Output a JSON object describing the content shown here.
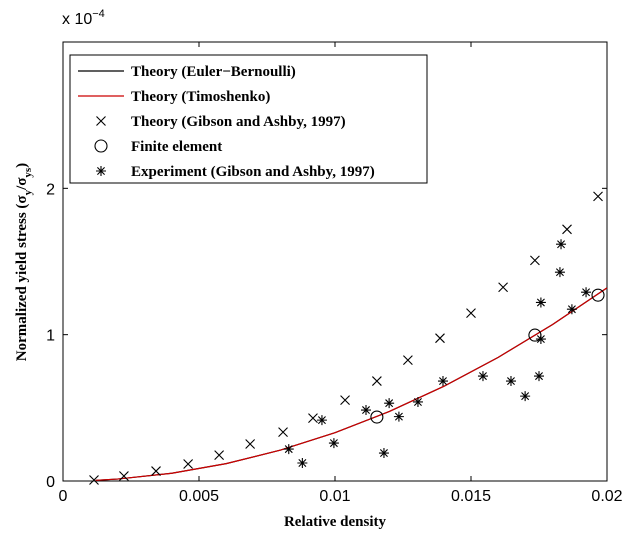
{
  "chart_data": {
    "type": "scatter",
    "y_multiplier": "x 10",
    "y_exponent": "−4",
    "x_label": "Relative density",
    "y_label": [
      "Normalized yield stress (σ",
      "y",
      "/σ",
      "ys",
      ")"
    ],
    "xlim": [
      0,
      0.02
    ],
    "xticks": [
      0,
      0.005,
      0.01,
      0.015,
      0.02
    ],
    "ylim": [
      0,
      3
    ],
    "yticks": [
      0,
      1,
      2
    ],
    "legend": "upper left",
    "series": [
      {
        "name": "Theory (Euler−Bernoulli)",
        "color": "#000000",
        "marker": "line",
        "x": [
          0.0012,
          0.002,
          0.004,
          0.006,
          0.008,
          0.01,
          0.012,
          0.014,
          0.016,
          0.018,
          0.02
        ],
        "values": [
          0.0048,
          0.0132,
          0.0528,
          0.1188,
          0.2112,
          0.33,
          0.4752,
          0.6468,
          0.8448,
          1.0692,
          1.32
        ]
      },
      {
        "name": "Theory (Timoshenko)",
        "color": "#cc0000",
        "marker": "line",
        "x": [
          0.0012,
          0.002,
          0.004,
          0.006,
          0.008,
          0.01,
          0.012,
          0.014,
          0.016,
          0.018,
          0.02
        ],
        "values": [
          0.0048,
          0.0132,
          0.0528,
          0.1188,
          0.2112,
          0.33,
          0.4752,
          0.6468,
          0.8448,
          1.0692,
          1.32
        ]
      },
      {
        "name": "Theory (Gibson and Ashby, 1997)",
        "color": "#000000",
        "marker": "x",
        "x": [
          0.00114,
          0.00224,
          0.00342,
          0.0046,
          0.00574,
          0.00688,
          0.00809,
          0.00919,
          0.01037,
          0.01154,
          0.01268,
          0.01386,
          0.015,
          0.01618,
          0.01735,
          0.01853,
          0.01967
        ],
        "values": [
          0.007,
          0.034,
          0.068,
          0.116,
          0.177,
          0.253,
          0.334,
          0.43,
          0.553,
          0.683,
          0.826,
          0.976,
          1.147,
          1.324,
          1.508,
          1.72,
          1.945
        ]
      },
      {
        "name": "Finite element",
        "color": "#000000",
        "marker": "o",
        "x": [
          0.01154,
          0.01735,
          0.01967
        ],
        "values": [
          0.437,
          0.997,
          1.27
        ]
      },
      {
        "name": "Experiment (Gibson and Ashby, 1997)",
        "color": "#000000",
        "marker": "*",
        "x": [
          0.0083,
          0.0088,
          0.00952,
          0.00996,
          0.01114,
          0.0118,
          0.01199,
          0.01235,
          0.01305,
          0.01397,
          0.01544,
          0.01647,
          0.01699,
          0.0175,
          0.01757,
          0.01757,
          0.01827,
          0.01831,
          0.01871,
          0.01923
        ],
        "values": [
          0.218,
          0.123,
          0.416,
          0.259,
          0.485,
          0.191,
          0.532,
          0.44,
          0.54,
          0.683,
          0.717,
          0.683,
          0.58,
          0.717,
          0.97,
          1.22,
          1.427,
          1.618,
          1.174,
          1.29
        ]
      }
    ]
  }
}
